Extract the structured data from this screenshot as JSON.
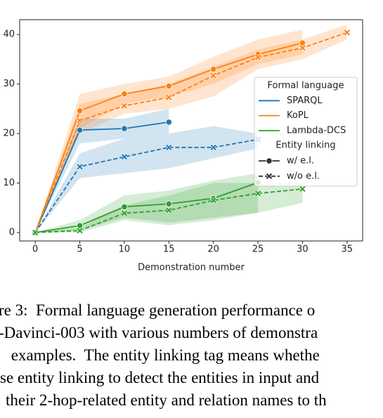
{
  "chart_data": {
    "type": "line",
    "xlabel": "Demonstration number",
    "xlim": [
      -1.75,
      36.75
    ],
    "ylim": [
      -1.7,
      43
    ],
    "xticks": [
      0,
      5,
      10,
      15,
      20,
      25,
      30,
      35
    ],
    "yticks": [
      0,
      10,
      20,
      30,
      40
    ],
    "legend": {
      "position": "center right",
      "hue_title": "Formal language",
      "hue": [
        {
          "label": "SPARQL",
          "color": "#1f77b4"
        },
        {
          "label": "KoPL",
          "color": "#ff7f0e"
        },
        {
          "label": "Lambda-DCS",
          "color": "#2ca02c"
        }
      ],
      "style_title": "Entity linking",
      "style": [
        {
          "label": "w/ e.l.",
          "marker": "o",
          "dashed": false
        },
        {
          "label": "w/o e.l.",
          "marker": "x",
          "dashed": true
        }
      ]
    },
    "series": [
      {
        "name": "SPARQL",
        "color": "#1f77b4",
        "marker": "o",
        "dashed": false,
        "x": [
          0,
          5,
          10,
          15
        ],
        "values": [
          0,
          20.7,
          21.0,
          22.3
        ],
        "band_lower": [
          0,
          18,
          19,
          20
        ],
        "band_upper": [
          0,
          23,
          23,
          25
        ]
      },
      {
        "name": "SPARQL",
        "color": "#1f77b4",
        "marker": "x",
        "dashed": true,
        "x": [
          0,
          5,
          10,
          15,
          20,
          25
        ],
        "values": [
          0,
          13.3,
          15.3,
          17.2,
          17.2,
          18.8
        ],
        "band_lower": [
          0,
          11,
          12,
          13,
          15,
          17
        ],
        "band_upper": [
          0,
          16,
          19,
          20,
          21.5,
          20
        ]
      },
      {
        "name": "KoPL",
        "color": "#ff7f0e",
        "marker": "o",
        "dashed": false,
        "x": [
          0,
          5,
          10,
          15,
          20,
          25,
          30
        ],
        "values": [
          0,
          24.6,
          28.0,
          29.6,
          33.0,
          36.0,
          38.3
        ],
        "band_lower": [
          0,
          21,
          26,
          27.5,
          30,
          34,
          36
        ],
        "band_upper": [
          0,
          28,
          30,
          31.5,
          35.5,
          39,
          41
        ]
      },
      {
        "name": "KoPL",
        "color": "#ff7f0e",
        "marker": "x",
        "dashed": true,
        "x": [
          0,
          5,
          10,
          15,
          20,
          25,
          30,
          35
        ],
        "values": [
          0,
          22.6,
          25.6,
          27.3,
          31.7,
          35.4,
          37.3,
          40.4
        ],
        "band_lower": [
          0,
          20,
          24,
          25,
          27.5,
          33,
          35,
          39
        ],
        "band_upper": [
          0,
          26,
          28,
          30,
          33.5,
          37,
          39,
          42
        ]
      },
      {
        "name": "Lambda-DCS",
        "color": "#2ca02c",
        "marker": "o",
        "dashed": false,
        "x": [
          0,
          5,
          10,
          15,
          20,
          25
        ],
        "values": [
          0,
          1.4,
          5.2,
          5.8,
          6.9,
          10.1
        ],
        "band_lower": [
          0,
          0.5,
          3,
          2,
          3,
          4
        ],
        "band_upper": [
          0,
          2.5,
          7.5,
          8.5,
          10.5,
          12
        ]
      },
      {
        "name": "Lambda-DCS",
        "color": "#2ca02c",
        "marker": "x",
        "dashed": true,
        "x": [
          0,
          5,
          10,
          15,
          20,
          25,
          30
        ],
        "values": [
          0,
          0.4,
          3.9,
          4.5,
          6.5,
          7.9,
          8.8
        ],
        "band_lower": [
          0,
          0,
          2.5,
          1.5,
          2.5,
          4,
          6
        ],
        "band_upper": [
          0,
          1,
          5.5,
          7.5,
          10,
          10,
          10
        ]
      }
    ]
  },
  "caption": {
    "lines": [
      "re 3:  Formal language generation performance o",
      "-Davinci-003 with various numbers of demonstra",
      " examples.  The entity linking tag means whethe",
      "se entity linking to detect the entities in input and",
      "their 2-hop-related entity and relation names to th"
    ]
  }
}
